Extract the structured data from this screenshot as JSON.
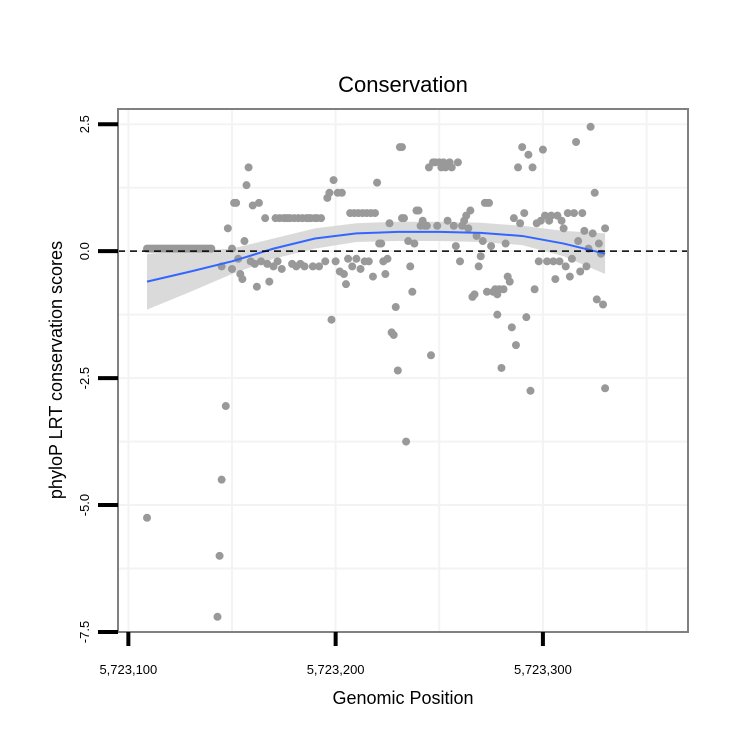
{
  "chart_data": {
    "type": "scatter",
    "title": "Conservation",
    "xlabel": "Genomic Position",
    "ylabel": "phyloP LRT conservation scores",
    "xlim": [
      5723095,
      5723370
    ],
    "ylim": [
      -7.5,
      2.8
    ],
    "x_ticks": [
      5723100,
      5723200,
      5723300
    ],
    "x_tick_labels": [
      "5,723,100",
      "5,723,200",
      "5,723,300"
    ],
    "y_ticks": [
      2.5,
      0.0,
      -2.5,
      -5.0,
      -7.5
    ],
    "y_tick_labels": [
      "2.5",
      "0.0",
      "-2.5",
      "-5.0",
      "-7.5"
    ],
    "reference_line": {
      "y": 0.0,
      "style": "dashed",
      "color": "#000000"
    },
    "colors": {
      "points": "#999999",
      "smooth_line": "#3366ff",
      "ribbon": "#d4d4d4",
      "panel_border": "#808080",
      "grid": "#f3f3f3"
    },
    "series": [
      {
        "name": "scores",
        "points": [
          [
            5723109,
            0.05
          ],
          [
            5723110,
            0.05
          ],
          [
            5723111,
            0.05
          ],
          [
            5723112,
            0.05
          ],
          [
            5723113,
            0.05
          ],
          [
            5723114,
            0.05
          ],
          [
            5723115,
            0.05
          ],
          [
            5723116,
            0.05
          ],
          [
            5723117,
            0.05
          ],
          [
            5723118,
            0.05
          ],
          [
            5723119,
            0.05
          ],
          [
            5723120,
            0.05
          ],
          [
            5723121,
            0.05
          ],
          [
            5723122,
            0.05
          ],
          [
            5723123,
            0.05
          ],
          [
            5723124,
            0.05
          ],
          [
            5723125,
            0.05
          ],
          [
            5723126,
            0.05
          ],
          [
            5723127,
            0.05
          ],
          [
            5723128,
            0.05
          ],
          [
            5723129,
            0.05
          ],
          [
            5723130,
            0.05
          ],
          [
            5723131,
            0.05
          ],
          [
            5723132,
            0.05
          ],
          [
            5723133,
            0.05
          ],
          [
            5723134,
            0.05
          ],
          [
            5723135,
            0.05
          ],
          [
            5723136,
            0.05
          ],
          [
            5723137,
            0.05
          ],
          [
            5723138,
            0.05
          ],
          [
            5723139,
            0.05
          ],
          [
            5723140,
            0.05
          ],
          [
            5723109,
            -5.25
          ],
          [
            5723143,
            -7.2
          ],
          [
            5723144,
            -6.0
          ],
          [
            5723145,
            -4.5
          ],
          [
            5723147,
            -3.05
          ],
          [
            5723145,
            -0.3
          ],
          [
            5723148,
            0.45
          ],
          [
            5723150,
            0.05
          ],
          [
            5723150,
            -0.35
          ],
          [
            5723151,
            0.95
          ],
          [
            5723152,
            0.95
          ],
          [
            5723153,
            -0.15
          ],
          [
            5723154,
            -0.45
          ],
          [
            5723155,
            -0.55
          ],
          [
            5723156,
            0.2
          ],
          [
            5723157,
            1.3
          ],
          [
            5723158,
            1.65
          ],
          [
            5723159,
            -0.2
          ],
          [
            5723160,
            0.9
          ],
          [
            5723161,
            -0.25
          ],
          [
            5723162,
            -0.7
          ],
          [
            5723163,
            0.95
          ],
          [
            5723164,
            -0.2
          ],
          [
            5723166,
            0.65
          ],
          [
            5723167,
            -0.25
          ],
          [
            5723168,
            -0.6
          ],
          [
            5723170,
            -0.3
          ],
          [
            5723171,
            0.65
          ],
          [
            5723172,
            -0.2
          ],
          [
            5723173,
            0.65
          ],
          [
            5723174,
            -0.35
          ],
          [
            5723175,
            0.65
          ],
          [
            5723176,
            0.65
          ],
          [
            5723177,
            0.65
          ],
          [
            5723178,
            0.65
          ],
          [
            5723179,
            -0.25
          ],
          [
            5723180,
            0.65
          ],
          [
            5723181,
            -0.3
          ],
          [
            5723182,
            0.65
          ],
          [
            5723183,
            -0.25
          ],
          [
            5723184,
            0.65
          ],
          [
            5723185,
            -0.3
          ],
          [
            5723186,
            0.65
          ],
          [
            5723187,
            0.65
          ],
          [
            5723188,
            0.65
          ],
          [
            5723189,
            -0.3
          ],
          [
            5723190,
            0.65
          ],
          [
            5723191,
            0.65
          ],
          [
            5723192,
            -0.3
          ],
          [
            5723193,
            0.65
          ],
          [
            5723195,
            -0.2
          ],
          [
            5723196,
            1.05
          ],
          [
            5723197,
            1.15
          ],
          [
            5723198,
            -1.35
          ],
          [
            5723199,
            1.4
          ],
          [
            5723200,
            -0.2
          ],
          [
            5723201,
            1.15
          ],
          [
            5723202,
            -0.4
          ],
          [
            5723203,
            1.15
          ],
          [
            5723204,
            -0.45
          ],
          [
            5723205,
            -0.65
          ],
          [
            5723206,
            -0.15
          ],
          [
            5723207,
            0.75
          ],
          [
            5723208,
            -0.3
          ],
          [
            5723209,
            0.75
          ],
          [
            5723210,
            -0.15
          ],
          [
            5723211,
            0.75
          ],
          [
            5723212,
            -0.35
          ],
          [
            5723213,
            0.75
          ],
          [
            5723214,
            -0.2
          ],
          [
            5723215,
            0.75
          ],
          [
            5723216,
            -0.2
          ],
          [
            5723217,
            0.75
          ],
          [
            5723218,
            -0.5
          ],
          [
            5723219,
            0.75
          ],
          [
            5723220,
            1.35
          ],
          [
            5723221,
            0.15
          ],
          [
            5723222,
            0.15
          ],
          [
            5723223,
            -0.2
          ],
          [
            5723224,
            -0.45
          ],
          [
            5723225,
            -0.15
          ],
          [
            5723226,
            0.55
          ],
          [
            5723227,
            -1.6
          ],
          [
            5723228,
            -1.65
          ],
          [
            5723229,
            -1.1
          ],
          [
            5723230,
            -2.35
          ],
          [
            5723231,
            2.05
          ],
          [
            5723232,
            2.05
          ],
          [
            5723232,
            0.65
          ],
          [
            5723233,
            0.65
          ],
          [
            5723234,
            -3.75
          ],
          [
            5723235,
            0.2
          ],
          [
            5723236,
            -0.3
          ],
          [
            5723237,
            -0.8
          ],
          [
            5723238,
            0.15
          ],
          [
            5723239,
            0.8
          ],
          [
            5723240,
            0.8
          ],
          [
            5723241,
            0.5
          ],
          [
            5723242,
            0.6
          ],
          [
            5723243,
            0.5
          ],
          [
            5723244,
            0.5
          ],
          [
            5723245,
            1.65
          ],
          [
            5723246,
            -2.05
          ],
          [
            5723247,
            1.75
          ],
          [
            5723248,
            1.75
          ],
          [
            5723249,
            0.5
          ],
          [
            5723250,
            1.75
          ],
          [
            5723251,
            1.65
          ],
          [
            5723252,
            1.75
          ],
          [
            5723253,
            1.65
          ],
          [
            5723254,
            0.6
          ],
          [
            5723255,
            1.75
          ],
          [
            5723256,
            1.65
          ],
          [
            5723257,
            0.5
          ],
          [
            5723258,
            0.1
          ],
          [
            5723259,
            1.75
          ],
          [
            5723260,
            -0.2
          ],
          [
            5723261,
            0.5
          ],
          [
            5723262,
            0.6
          ],
          [
            5723263,
            0.7
          ],
          [
            5723264,
            0.45
          ],
          [
            5723265,
            0.8
          ],
          [
            5723266,
            -0.9
          ],
          [
            5723267,
            -0.85
          ],
          [
            5723268,
            0.3
          ],
          [
            5723269,
            -0.3
          ],
          [
            5723270,
            -0.1
          ],
          [
            5723271,
            0.2
          ],
          [
            5723272,
            0.95
          ],
          [
            5723273,
            0.95
          ],
          [
            5723273,
            -0.8
          ],
          [
            5723274,
            0.95
          ],
          [
            5723275,
            0.1
          ],
          [
            5723276,
            -0.8
          ],
          [
            5723277,
            -0.75
          ],
          [
            5723278,
            -0.85
          ],
          [
            5723278,
            -1.25
          ],
          [
            5723279,
            -0.75
          ],
          [
            5723280,
            -2.3
          ],
          [
            5723281,
            -0.75
          ],
          [
            5723282,
            0.15
          ],
          [
            5723283,
            -0.5
          ],
          [
            5723284,
            -0.6
          ],
          [
            5723285,
            -1.5
          ],
          [
            5723286,
            0.65
          ],
          [
            5723287,
            -1.85
          ],
          [
            5723288,
            1.65
          ],
          [
            5723289,
            0.55
          ],
          [
            5723290,
            2.05
          ],
          [
            5723291,
            0.75
          ],
          [
            5723292,
            -1.3
          ],
          [
            5723293,
            1.9
          ],
          [
            5723294,
            -2.75
          ],
          [
            5723295,
            1.65
          ],
          [
            5723296,
            -0.75
          ],
          [
            5723297,
            0.55
          ],
          [
            5723298,
            -0.2
          ],
          [
            5723299,
            0.6
          ],
          [
            5723300,
            2.0
          ],
          [
            5723301,
            0.7
          ],
          [
            5723302,
            -0.2
          ],
          [
            5723303,
            0.6
          ],
          [
            5723304,
            0.7
          ],
          [
            5723305,
            -0.2
          ],
          [
            5723306,
            -0.55
          ],
          [
            5723307,
            0.7
          ],
          [
            5723308,
            -0.2
          ],
          [
            5723309,
            0.6
          ],
          [
            5723310,
            0.45
          ],
          [
            5723311,
            -0.3
          ],
          [
            5723312,
            0.75
          ],
          [
            5723313,
            -0.5
          ],
          [
            5723314,
            -0.15
          ],
          [
            5723315,
            0.75
          ],
          [
            5723316,
            2.15
          ],
          [
            5723317,
            0.2
          ],
          [
            5723318,
            -0.4
          ],
          [
            5723319,
            0.75
          ],
          [
            5723320,
            0.4
          ],
          [
            5723321,
            -0.3
          ],
          [
            5723322,
            0.05
          ],
          [
            5723323,
            2.45
          ],
          [
            5723324,
            0.35
          ],
          [
            5723325,
            1.15
          ],
          [
            5723326,
            -0.95
          ],
          [
            5723327,
            0.15
          ],
          [
            5723328,
            -0.05
          ],
          [
            5723329,
            -1.05
          ],
          [
            5723330,
            -2.7
          ],
          [
            5723330,
            0.45
          ]
        ]
      }
    ],
    "smooth": {
      "method": "loess",
      "x": [
        5723109,
        5723130,
        5723150,
        5723170,
        5723190,
        5723210,
        5723230,
        5723250,
        5723270,
        5723290,
        5723310,
        5723330
      ],
      "y": [
        -0.6,
        -0.4,
        -0.2,
        0.05,
        0.25,
        0.35,
        0.38,
        0.38,
        0.36,
        0.3,
        0.15,
        -0.05
      ],
      "ymin": [
        -1.15,
        -0.8,
        -0.45,
        -0.15,
        0.05,
        0.18,
        0.2,
        0.2,
        0.18,
        0.12,
        -0.1,
        -0.45
      ],
      "ymax": [
        -0.05,
        0.0,
        0.05,
        0.25,
        0.45,
        0.55,
        0.58,
        0.58,
        0.56,
        0.5,
        0.4,
        0.35
      ]
    }
  }
}
